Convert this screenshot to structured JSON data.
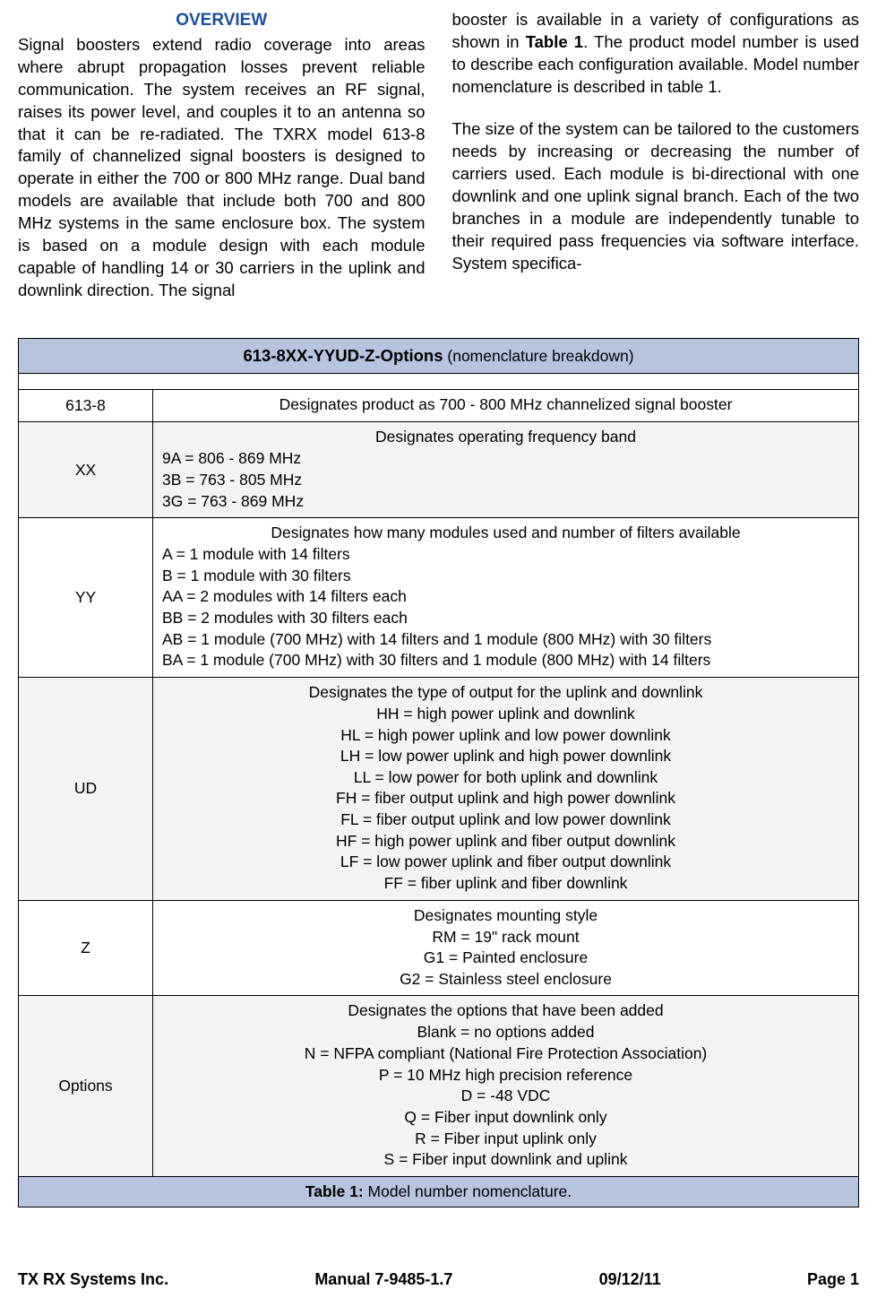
{
  "colors": {
    "heading_blue": "#1a4fa0",
    "header_bg": "#b6c4de",
    "shaded_bg": "#f3f3f3",
    "border": "#000000",
    "text": "#000000",
    "page_bg": "#ffffff"
  },
  "overview": {
    "heading": "OVERVIEW",
    "left_para": "Signal boosters extend radio coverage into areas where abrupt propagation losses prevent reliable communication. The system receives an RF signal, raises its power level, and couples it to an antenna so that it can be re-radiated. The TXRX model 613-8 family of channelized signal boosters is designed to operate in either the 700 or 800 MHz range. Dual band models are available that include both 700 and 800 MHz systems in the same enclosure box. The system is based on a module design with each module capable of handling 14 or 30 carriers in the uplink and downlink direction. The signal",
    "right_para1_pre": "booster is available in a variety of configurations as shown in ",
    "right_para1_bold": "Table 1",
    "right_para1_post": ". The product model number is used to describe each configuration available. Model number nomenclature is described in table 1.",
    "right_para2": "The size of the system can be tailored to the customers needs by increasing or decreasing the number of carriers used. Each module is bi-directional with one downlink and one uplink signal branch. Each of the two branches in a module are independently tunable to their required pass frequencies via software interface. System specifica-"
  },
  "table": {
    "header_main": "613-8XX-YYUD-Z-Options",
    "header_sub": " (nomenclature breakdown)",
    "rows": {
      "r1": {
        "code": "613-8",
        "heading": "Designates product as 700 - 800 MHz channelized signal booster"
      },
      "r2": {
        "code": "XX",
        "heading": "Designates operating frequency band",
        "lines": [
          "9A = 806 - 869 MHz",
          "3B = 763 - 805 MHz",
          "3G = 763 - 869 MHz"
        ]
      },
      "r3": {
        "code": "YY",
        "heading": "Designates how many modules used and number of filters available",
        "lines": [
          "A = 1 module with 14 filters",
          "B = 1 module with 30 filters",
          "AA = 2 modules with 14 filters each",
          "BB = 2 modules with 30 filters each",
          "AB = 1 module (700 MHz) with 14 filters and 1 module (800 MHz) with 30 filters",
          "BA = 1 module (700 MHz) with 30 filters and 1 module (800 MHz) with 14 filters"
        ]
      },
      "r4": {
        "code": "UD",
        "heading": "Designates the type of output for the uplink and downlink",
        "lines": [
          "HH = high power uplink and downlink",
          "HL = high power uplink and low power downlink",
          "LH = low power uplink and high power downlink",
          "LL = low power for both uplink and downlink",
          "FH = fiber output uplink and high power downlink",
          "FL = fiber output uplink and low power downlink",
          "HF = high power uplink and fiber output downlink",
          "LF = low power uplink and fiber output downlink",
          "FF = fiber uplink and fiber downlink"
        ]
      },
      "r5": {
        "code": "Z",
        "heading": "Designates mounting style",
        "lines": [
          "RM = 19\" rack mount",
          "G1 = Painted enclosure",
          "G2 = Stainless steel enclosure"
        ]
      },
      "r6": {
        "code": "Options",
        "heading": "Designates the options that have been added",
        "lines": [
          "Blank = no options added",
          "N = NFPA compliant (National Fire Protection Association)",
          "P = 10 MHz high precision reference",
          "D = -48 VDC",
          "Q = Fiber input downlink only",
          "R = Fiber input uplink only",
          "S = Fiber input downlink and uplink"
        ]
      }
    },
    "caption_label": "Table 1:",
    "caption_text": " Model number nomenclature."
  },
  "footer": {
    "left": "TX RX Systems Inc.",
    "center": "Manual 7-9485-1.7",
    "date": "09/12/11",
    "page": "Page 1"
  }
}
